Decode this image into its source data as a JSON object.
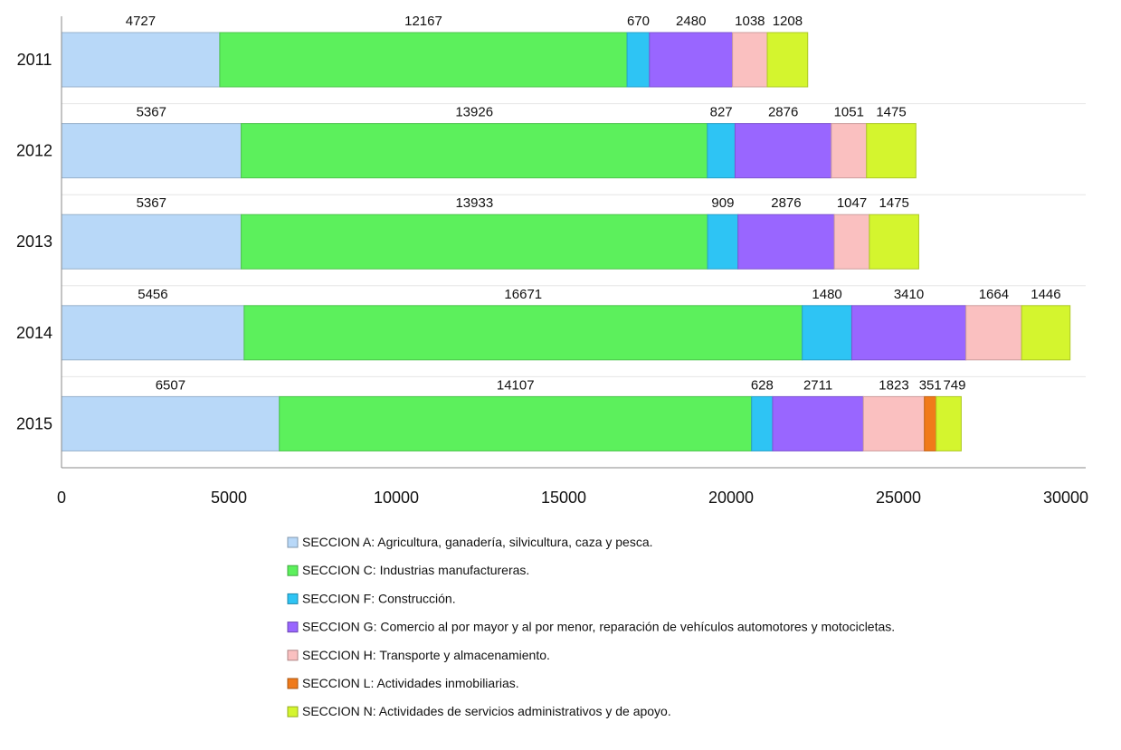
{
  "chart_data": {
    "type": "bar",
    "orientation": "horizontal",
    "stacked": true,
    "categories": [
      "2011",
      "2012",
      "2013",
      "2014",
      "2015"
    ],
    "xlim": [
      0,
      30000
    ],
    "x_ticks": [
      "0",
      "5000",
      "10000",
      "15000",
      "20000",
      "25000",
      "30000"
    ],
    "grid": false,
    "legend_position": "bottom",
    "series": [
      {
        "name": "SECCION A: Agricultura, ganadería, silvicultura, caza y pesca.",
        "color": "#b8d8f8",
        "values": [
          4727,
          5367,
          5367,
          5456,
          6507
        ],
        "labels": [
          "4727",
          "5367",
          "5367",
          "5456",
          "6507"
        ]
      },
      {
        "name": "SECCION C: Industrias manufactureras.",
        "color": "#5cf05c",
        "values": [
          12167,
          13926,
          13933,
          16671,
          14107
        ],
        "labels": [
          "12167",
          "13926",
          "13933",
          "16671",
          "14107"
        ]
      },
      {
        "name": "SECCION F: Construcción.",
        "color": "#2ec4f4",
        "values": [
          670,
          827,
          909,
          1480,
          628
        ],
        "labels": [
          "670",
          "827",
          "909",
          "1480",
          "628"
        ]
      },
      {
        "name": "SECCION G: Comercio al por mayor y al por menor, reparación de vehículos automotores y motocicletas.",
        "color": "#9966ff",
        "values": [
          2480,
          2876,
          2876,
          3410,
          2711
        ],
        "labels": [
          "2480",
          "2876",
          "2876",
          "3410",
          "2711"
        ]
      },
      {
        "name": "SECCION H: Transporte y almacenamiento.",
        "color": "#fac0c0",
        "values": [
          1038,
          1051,
          1047,
          1664,
          1823
        ],
        "labels": [
          "1038",
          "1051",
          "1047",
          "1664",
          "1823"
        ]
      },
      {
        "name": "SECCION L: Actividades inmobiliarias.",
        "color": "#f07a1a",
        "values": [
          0,
          0,
          0,
          0,
          351
        ],
        "labels": [
          "",
          "",
          "",
          "",
          "351"
        ]
      },
      {
        "name": "SECCION N: Actividades de servicios administrativos y de apoyo.",
        "color": "#d4f52e",
        "values": [
          1208,
          1475,
          1475,
          1446,
          749
        ],
        "labels": [
          "1208",
          "1475",
          "1475",
          "1446",
          "749"
        ]
      }
    ]
  }
}
